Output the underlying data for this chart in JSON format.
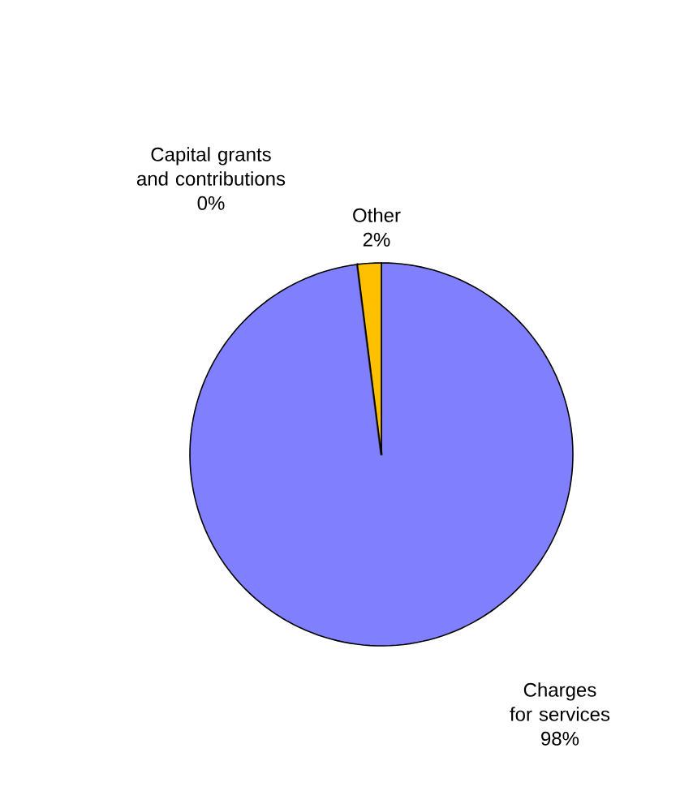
{
  "chart_data": {
    "type": "pie",
    "categories": [
      "Charges for services",
      "Capital grants and contributions",
      "Other"
    ],
    "values": [
      98,
      0,
      2
    ],
    "value_labels": [
      "98%",
      "0%",
      "2%"
    ],
    "colors": [
      "#8080ff",
      "#333333",
      "#ffc000"
    ]
  }
}
